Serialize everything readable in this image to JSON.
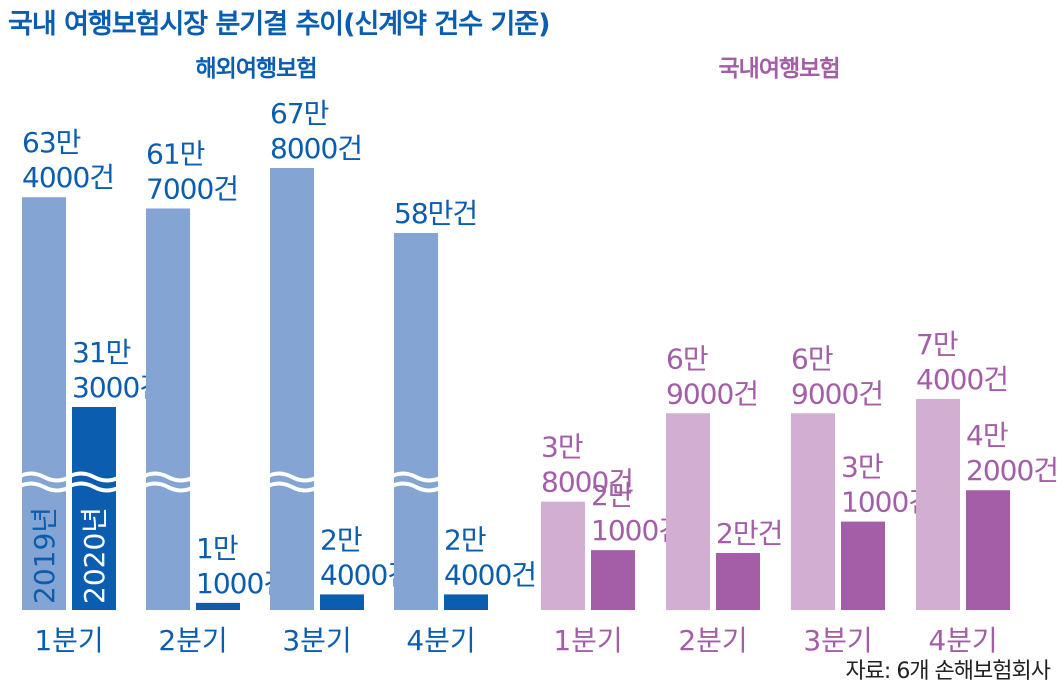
{
  "title": "국내 여행보험시장 분기결 추이(신계약 건수 기준)",
  "source": "자료: 6개 손해보험회사",
  "colors": {
    "title": "#0b5db0",
    "overseas_2019": "#84a5d3",
    "overseas_2020": "#0b5db0",
    "overseas_text": "#0b5db0",
    "domestic_2019": "#d3aed3",
    "domestic_2020": "#a45ea8",
    "domestic_text": "#a45ea8",
    "year_text": "#0b5db0"
  },
  "chart_data": [
    {
      "type": "bar",
      "group": "해외여행보험",
      "categories": [
        "1분기",
        "2분기",
        "3분기",
        "4분기"
      ],
      "series": [
        {
          "name": "2019년",
          "values": [
            634000,
            617000,
            678000,
            580000
          ],
          "labels": [
            "63만\n4000건",
            "61만\n7000건",
            "67만\n8000건",
            "58만건"
          ]
        },
        {
          "name": "2020년",
          "values": [
            313000,
            11000,
            24000,
            24000
          ],
          "labels": [
            "31만\n3000건",
            "1만\n1000건",
            "2만\n4000건",
            "2만\n4000건"
          ]
        }
      ],
      "axis_break": true
    },
    {
      "type": "bar",
      "group": "국내여행보험",
      "categories": [
        "1분기",
        "2분기",
        "3분기",
        "4분기"
      ],
      "series": [
        {
          "name": "2019년",
          "values": [
            38000,
            69000,
            69000,
            74000
          ],
          "labels": [
            "3만\n8000건",
            "6만\n9000건",
            "6만\n9000건",
            "7만\n4000건"
          ]
        },
        {
          "name": "2020년",
          "values": [
            21000,
            20000,
            31000,
            42000
          ],
          "labels": [
            "2만\n1000건",
            "2만건",
            "3만\n1000건",
            "4만\n2000건"
          ]
        }
      ]
    }
  ]
}
